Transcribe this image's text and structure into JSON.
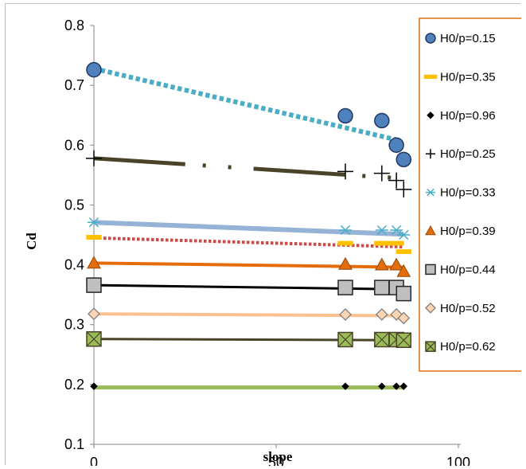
{
  "chart_data": {
    "type": "scatter",
    "title": "",
    "xlabel": "slope",
    "ylabel": "Cd",
    "xlim": [
      0,
      100
    ],
    "ylim": [
      0.1,
      0.8
    ],
    "xticks": [
      "0",
      "50",
      "100"
    ],
    "yticks": [
      "0.1",
      "0.2",
      "0.3",
      "0.4",
      "0.5",
      "0.6",
      "0.7",
      "0.8"
    ],
    "grid": false,
    "legend": "right",
    "series": [
      {
        "name": "H0/p=0.15",
        "marker": "circle",
        "marker_color": "#4f81bd",
        "marker_edge": "#1f3864",
        "points": [
          [
            0,
            0.726
          ],
          [
            69,
            0.649
          ],
          [
            79,
            0.641
          ],
          [
            83,
            0.6
          ],
          [
            85,
            0.576
          ]
        ],
        "trend": {
          "from": [
            0,
            0.728
          ],
          "to": [
            83,
            0.609
          ],
          "color": "#4bacc6",
          "style": "dotted",
          "width": 6
        }
      },
      {
        "name": "H0/p=0.35",
        "marker": "dash",
        "marker_color": "#ffc000",
        "marker_edge": "#ffc000",
        "points": [
          [
            0,
            0.446
          ],
          [
            69,
            0.436
          ],
          [
            79,
            0.436
          ],
          [
            83,
            0.436
          ],
          [
            85,
            0.422
          ]
        ],
        "trend": {
          "from": [
            0,
            0.445
          ],
          "to": [
            85,
            0.43
          ],
          "color": "#c0504d",
          "style": "dotted",
          "width": 4
        }
      },
      {
        "name": "H0/p=0.96",
        "marker": "diamond",
        "marker_color": "#000000",
        "marker_edge": "#000000",
        "points": [
          [
            0,
            0.197
          ],
          [
            69,
            0.197
          ],
          [
            79,
            0.197
          ],
          [
            83,
            0.197
          ],
          [
            85,
            0.197
          ]
        ],
        "trend": {
          "from": [
            0,
            0.195
          ],
          "to": [
            85,
            0.195
          ],
          "color": "#9bbb59",
          "style": "solid",
          "width": 5
        }
      },
      {
        "name": "H0/p=0.25",
        "marker": "plus",
        "marker_color": "#000000",
        "marker_edge": "#000000",
        "points": [
          [
            0,
            0.578
          ],
          [
            69,
            0.556
          ],
          [
            79,
            0.553
          ],
          [
            83,
            0.541
          ],
          [
            85,
            0.526
          ]
        ],
        "trend": {
          "from": [
            0,
            0.578
          ],
          "to": [
            83,
            0.545
          ],
          "color": "#494429",
          "style": "longdashdot",
          "width": 5
        }
      },
      {
        "name": "H0/p=0.33",
        "marker": "star",
        "marker_color": "#4bacc6",
        "marker_edge": "#4bacc6",
        "points": [
          [
            0,
            0.471
          ],
          [
            69,
            0.458
          ],
          [
            79,
            0.458
          ],
          [
            83,
            0.458
          ],
          [
            85,
            0.45
          ]
        ],
        "trend": {
          "from": [
            0,
            0.471
          ],
          "to": [
            85,
            0.451
          ],
          "color": "#95b3d7",
          "style": "solid",
          "width": 6
        }
      },
      {
        "name": "H0/p=0.39",
        "marker": "triangle",
        "marker_color": "#e46c0a",
        "marker_edge": "#984807",
        "points": [
          [
            0,
            0.403
          ],
          [
            69,
            0.401
          ],
          [
            79,
            0.4
          ],
          [
            83,
            0.4
          ],
          [
            85,
            0.389
          ]
        ],
        "trend": {
          "from": [
            0,
            0.403
          ],
          "to": [
            85,
            0.396
          ],
          "color": "#e46c0a",
          "style": "solid",
          "width": 4
        }
      },
      {
        "name": "H0/p=0.44",
        "marker": "square",
        "marker_color": "#bfbfbf",
        "marker_edge": "#262626",
        "points": [
          [
            0,
            0.366
          ],
          [
            69,
            0.362
          ],
          [
            79,
            0.362
          ],
          [
            83,
            0.362
          ],
          [
            85,
            0.352
          ]
        ],
        "trend": {
          "from": [
            0,
            0.366
          ],
          "to": [
            85,
            0.359
          ],
          "color": "#000000",
          "style": "solid",
          "width": 3
        }
      },
      {
        "name": "H0/p=0.52",
        "marker": "diamond-open",
        "marker_color": "#fcd5b4",
        "marker_edge": "#7f7f7f",
        "points": [
          [
            0,
            0.318
          ],
          [
            69,
            0.317
          ],
          [
            79,
            0.317
          ],
          [
            83,
            0.317
          ],
          [
            85,
            0.311
          ]
        ],
        "trend": {
          "from": [
            0,
            0.318
          ],
          "to": [
            85,
            0.315
          ],
          "color": "#fac090",
          "style": "solid",
          "width": 4
        }
      },
      {
        "name": "H0/p=0.62",
        "marker": "square-x",
        "marker_color": "#9bbb59",
        "marker_edge": "#494429",
        "points": [
          [
            0,
            0.276
          ],
          [
            69,
            0.275
          ],
          [
            79,
            0.275
          ],
          [
            83,
            0.275
          ],
          [
            85,
            0.274
          ]
        ],
        "trend": {
          "from": [
            0,
            0.276
          ],
          "to": [
            85,
            0.274
          ],
          "color": "#494429",
          "style": "solid",
          "width": 3
        }
      }
    ]
  },
  "colors": {
    "legend_border": "#e46c0a",
    "axis": "#868686"
  }
}
